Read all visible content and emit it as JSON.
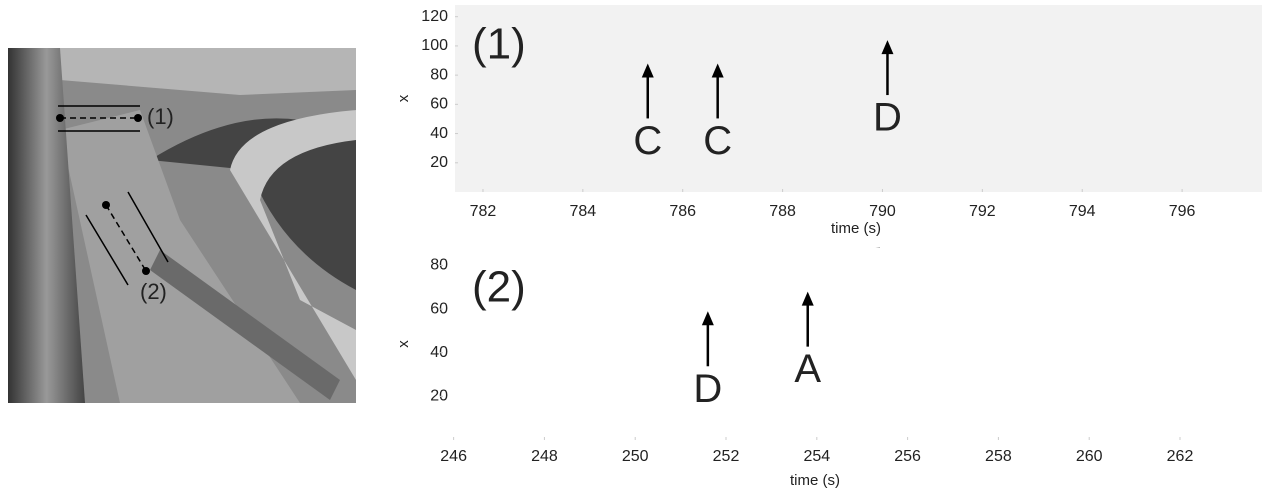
{
  "photo": {
    "labels": [
      "(1)",
      "(2)"
    ]
  },
  "panels": [
    {
      "label": "(1)",
      "xlabel": "time (s)",
      "ylabel": "x",
      "xlim": [
        781.44,
        797.6
      ],
      "ylim": [
        0,
        128
      ],
      "xticks": [
        782,
        784,
        786,
        788,
        790,
        792,
        794,
        796
      ],
      "yticks": [
        20,
        40,
        60,
        80,
        100,
        120
      ],
      "annotations": [
        {
          "text": "C",
          "x": 785.3,
          "y": 88
        },
        {
          "text": "C",
          "x": 786.7,
          "y": 88
        },
        {
          "text": "D",
          "x": 790.1,
          "y": 104
        }
      ]
    },
    {
      "label": "(2)",
      "xlabel": "time (s)",
      "ylabel": "x",
      "xlim": [
        245.7,
        262
      ],
      "ylim": [
        0,
        88
      ],
      "xticks": [
        246,
        248,
        250,
        252,
        254,
        256,
        258,
        260,
        262
      ],
      "yticks": [
        20,
        40,
        60,
        80
      ],
      "annotations": [
        {
          "text": "D",
          "x": 251.6,
          "y": 59
        },
        {
          "text": "A",
          "x": 253.8,
          "y": 68
        }
      ]
    }
  ]
}
